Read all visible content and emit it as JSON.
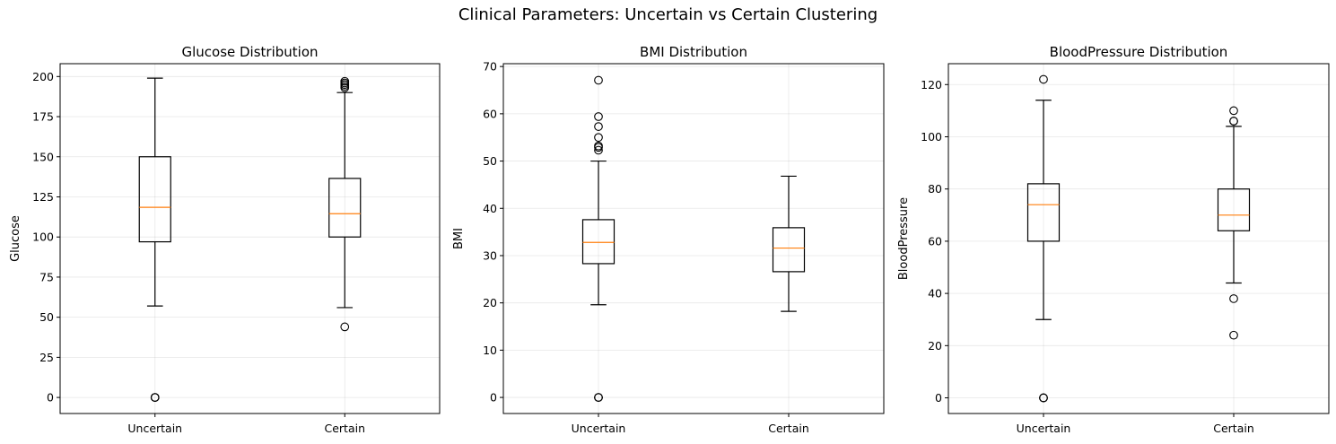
{
  "figure": {
    "title": "Clinical Parameters: Uncertain vs Certain Clustering"
  },
  "chart_data": [
    {
      "type": "box",
      "title": "Glucose Distribution",
      "xlabel": "",
      "ylabel": "Glucose",
      "categories": [
        "Uncertain",
        "Certain"
      ],
      "ylim": [
        -10,
        208
      ],
      "yticks": [
        0,
        25,
        50,
        75,
        100,
        125,
        150,
        175,
        200
      ],
      "grid": true,
      "boxes": [
        {
          "category": "Uncertain",
          "whisker_low": 57,
          "q1": 97,
          "median": 118.5,
          "q3": 150,
          "whisker_high": 199,
          "outliers": [
            0,
            0,
            0
          ]
        },
        {
          "category": "Certain",
          "whisker_low": 56,
          "q1": 100,
          "median": 114.5,
          "q3": 136.5,
          "whisker_high": 190,
          "outliers": [
            44,
            193,
            194,
            195,
            196,
            197
          ]
        }
      ]
    },
    {
      "type": "box",
      "title": "BMI Distribution",
      "xlabel": "",
      "ylabel": "BMI",
      "categories": [
        "Uncertain",
        "Certain"
      ],
      "ylim": [
        -3.4,
        70.6
      ],
      "yticks": [
        0,
        10,
        20,
        30,
        40,
        50,
        60,
        70
      ],
      "grid": true,
      "boxes": [
        {
          "category": "Uncertain",
          "whisker_low": 19.6,
          "q1": 28.3,
          "median": 32.8,
          "q3": 37.6,
          "whisker_high": 50.0,
          "outliers": [
            0,
            0,
            0,
            52.3,
            52.9,
            53.2,
            55.0,
            57.3,
            59.4,
            67.1
          ]
        },
        {
          "category": "Certain",
          "whisker_low": 18.2,
          "q1": 26.6,
          "median": 31.6,
          "q3": 35.9,
          "whisker_high": 46.8,
          "outliers": []
        }
      ]
    },
    {
      "type": "box",
      "title": "BloodPressure Distribution",
      "xlabel": "",
      "ylabel": "BloodPressure",
      "categories": [
        "Uncertain",
        "Certain"
      ],
      "ylim": [
        -6,
        128
      ],
      "yticks": [
        0,
        20,
        40,
        60,
        80,
        100,
        120
      ],
      "grid": true,
      "boxes": [
        {
          "category": "Uncertain",
          "whisker_low": 30,
          "q1": 60,
          "median": 74,
          "q3": 82,
          "whisker_high": 114,
          "outliers": [
            0,
            0,
            0,
            122
          ]
        },
        {
          "category": "Certain",
          "whisker_low": 44,
          "q1": 64,
          "median": 70,
          "q3": 80,
          "whisker_high": 104,
          "outliers": [
            24,
            38,
            106,
            106,
            110
          ]
        }
      ]
    }
  ],
  "colors": {
    "median": "#ff7f0e",
    "box": "#000000",
    "grid": "#b0b0b0"
  }
}
